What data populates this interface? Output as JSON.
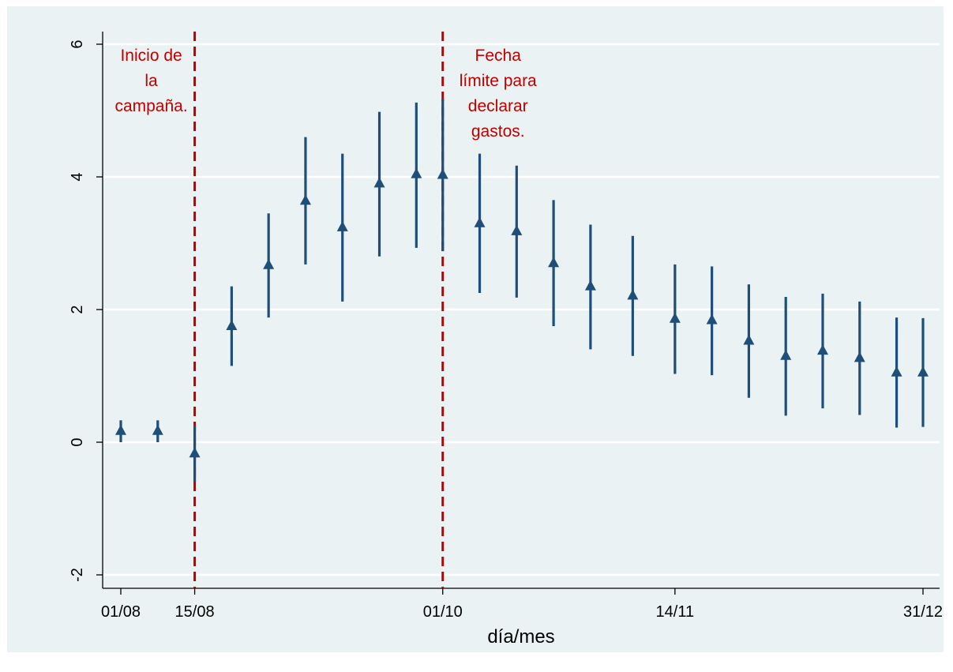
{
  "chart_data": {
    "type": "scatter",
    "xlabel": "día/mes",
    "ylabel": "",
    "ylim": [
      -2.5,
      6.2
    ],
    "y_ticks": [
      -2,
      0,
      2,
      4,
      6
    ],
    "x_ticks": [
      {
        "date": "2015-08-01",
        "label": "01/08"
      },
      {
        "date": "2015-08-15",
        "label": "15/08"
      },
      {
        "date": "2015-10-01",
        "label": "01/10"
      },
      {
        "date": "2015-11-14",
        "label": "14/11"
      },
      {
        "date": "2015-12-31",
        "label": "31/12"
      }
    ],
    "grid": true,
    "legend": "none",
    "marker": "triangle",
    "series_color": "#1f4e79",
    "annotation_color": "#c00000",
    "points": [
      {
        "date": "2015-08-01",
        "y": 0.17,
        "ci_low": 0.0,
        "ci_high": 0.33
      },
      {
        "date": "2015-08-08",
        "y": 0.17,
        "ci_low": 0.0,
        "ci_high": 0.33
      },
      {
        "date": "2015-08-15",
        "y": -0.17,
        "ci_low": -0.6,
        "ci_high": 0.25
      },
      {
        "date": "2015-08-22",
        "y": 1.75,
        "ci_low": 1.15,
        "ci_high": 2.35
      },
      {
        "date": "2015-08-29",
        "y": 2.67,
        "ci_low": 1.88,
        "ci_high": 3.45
      },
      {
        "date": "2015-09-05",
        "y": 3.64,
        "ci_low": 2.68,
        "ci_high": 4.6
      },
      {
        "date": "2015-09-12",
        "y": 3.24,
        "ci_low": 2.12,
        "ci_high": 4.35
      },
      {
        "date": "2015-09-19",
        "y": 3.9,
        "ci_low": 2.8,
        "ci_high": 4.98
      },
      {
        "date": "2015-09-26",
        "y": 4.04,
        "ci_low": 2.93,
        "ci_high": 5.12
      },
      {
        "date": "2015-10-01",
        "y": 4.03,
        "ci_low": 2.88,
        "ci_high": 5.18
      },
      {
        "date": "2015-10-08",
        "y": 3.3,
        "ci_low": 2.25,
        "ci_high": 4.35
      },
      {
        "date": "2015-10-15",
        "y": 3.18,
        "ci_low": 2.18,
        "ci_high": 4.17
      },
      {
        "date": "2015-10-22",
        "y": 2.7,
        "ci_low": 1.75,
        "ci_high": 3.65
      },
      {
        "date": "2015-10-29",
        "y": 2.35,
        "ci_low": 1.4,
        "ci_high": 3.28
      },
      {
        "date": "2015-11-06",
        "y": 2.21,
        "ci_low": 1.3,
        "ci_high": 3.11
      },
      {
        "date": "2015-11-14",
        "y": 1.86,
        "ci_low": 1.03,
        "ci_high": 2.68
      },
      {
        "date": "2015-11-21",
        "y": 1.84,
        "ci_low": 1.01,
        "ci_high": 2.65
      },
      {
        "date": "2015-11-28",
        "y": 1.53,
        "ci_low": 0.67,
        "ci_high": 2.38
      },
      {
        "date": "2015-12-05",
        "y": 1.3,
        "ci_low": 0.4,
        "ci_high": 2.19
      },
      {
        "date": "2015-12-12",
        "y": 1.38,
        "ci_low": 0.51,
        "ci_high": 2.24
      },
      {
        "date": "2015-12-19",
        "y": 1.27,
        "ci_low": 0.41,
        "ci_high": 2.12
      },
      {
        "date": "2015-12-26",
        "y": 1.05,
        "ci_low": 0.22,
        "ci_high": 1.88
      },
      {
        "date": "2015-12-31",
        "y": 1.05,
        "ci_low": 0.23,
        "ci_high": 1.87
      }
    ],
    "vlines": [
      {
        "date": "2015-08-15",
        "label_lines": [
          "Inicio de",
          "la",
          "campaña."
        ],
        "label_side": "left"
      },
      {
        "date": "2015-10-01",
        "label_lines": [
          "Fecha",
          "límite para",
          "declarar",
          "gastos."
        ],
        "label_side": "right"
      }
    ]
  }
}
